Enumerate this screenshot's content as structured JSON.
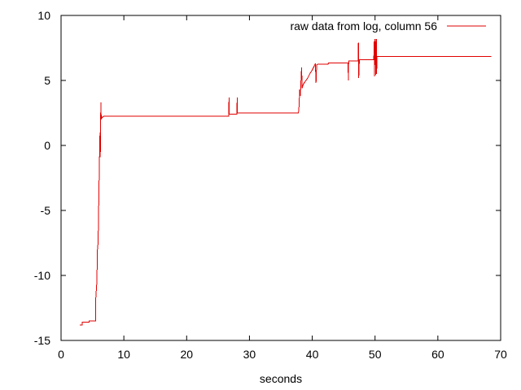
{
  "chart_data": {
    "type": "line",
    "title": "",
    "xlabel": "seconds",
    "ylabel": "",
    "xlim": [
      0,
      70
    ],
    "ylim": [
      -15,
      10
    ],
    "x_ticks": [
      0,
      10,
      20,
      30,
      40,
      50,
      60,
      70
    ],
    "y_ticks": [
      -15,
      -10,
      -5,
      0,
      5,
      10
    ],
    "grid": false,
    "legend_position": "top-right",
    "series": [
      {
        "name": "raw data from log, column 56",
        "color": "#e00000",
        "x": [
          3.0,
          3.4,
          3.4,
          4.5,
          4.5,
          5.5,
          5.5,
          5.7,
          5.8,
          5.9,
          6.0,
          6.1,
          6.2,
          6.25,
          6.3,
          6.35,
          6.4,
          6.45,
          6.5,
          6.55,
          6.6,
          6.7,
          6.8,
          7.0,
          7.5,
          26.7,
          26.75,
          26.8,
          26.9,
          28.0,
          28.05,
          28.1,
          28.2,
          37.8,
          37.9,
          38.0,
          38.1,
          38.3,
          38.4,
          38.5,
          38.7,
          39.0,
          39.3,
          39.6,
          40.0,
          40.3,
          40.5,
          40.6,
          40.7,
          40.9,
          42.5,
          42.6,
          45.7,
          45.75,
          45.8,
          47.3,
          47.35,
          47.4,
          47.5,
          47.55,
          47.6,
          49.8,
          49.85,
          49.9,
          50.0,
          50.05,
          50.1,
          50.2,
          50.25,
          50.3,
          68.5
        ],
        "y": [
          -13.8,
          -13.8,
          -13.6,
          -13.6,
          -13.5,
          -13.5,
          -12.0,
          -10.5,
          -8.0,
          -7.5,
          -4.5,
          -1.5,
          1.0,
          -0.9,
          2.0,
          3.3,
          2.0,
          2.1,
          2.1,
          2.2,
          2.2,
          2.2,
          2.25,
          2.25,
          2.25,
          2.25,
          3.7,
          2.4,
          2.4,
          2.4,
          3.7,
          2.5,
          2.5,
          2.5,
          3.0,
          4.3,
          3.8,
          6.0,
          4.4,
          4.6,
          4.8,
          5.0,
          5.2,
          5.5,
          5.8,
          6.1,
          6.3,
          4.8,
          6.2,
          6.25,
          6.25,
          6.35,
          6.35,
          5.0,
          6.5,
          6.5,
          7.9,
          5.2,
          6.6,
          6.6,
          6.6,
          6.6,
          8.0,
          5.3,
          8.2,
          6.7,
          5.4,
          8.2,
          5.5,
          6.85,
          6.85
        ]
      }
    ]
  }
}
